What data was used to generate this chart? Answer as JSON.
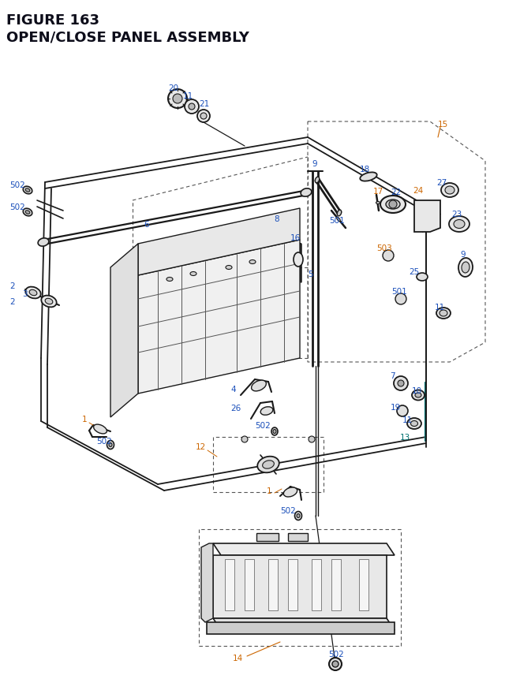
{
  "title_line1": "FIGURE 163",
  "title_line2": "OPEN/CLOSE PANEL ASSEMBLY",
  "bg_color": "#ffffff",
  "title_color": "#0d0d1a",
  "BK": "#1a1a1a",
  "BL": "#1a4fba",
  "OR": "#cc6600",
  "TL": "#007070",
  "GR": "#555555",
  "figsize": [
    6.4,
    8.62
  ],
  "dpi": 100
}
